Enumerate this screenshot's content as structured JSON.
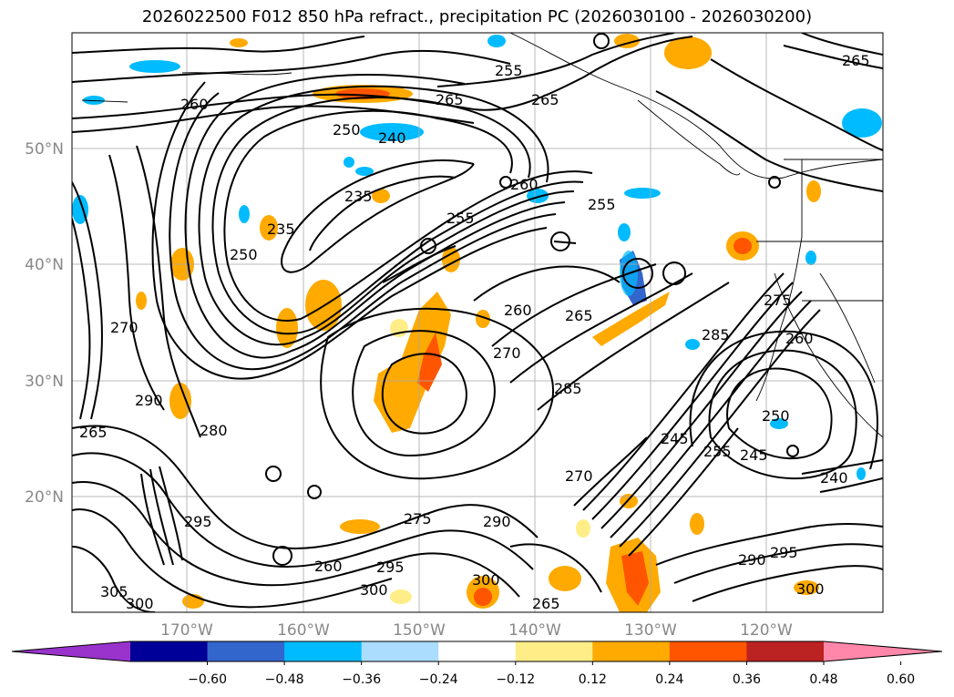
{
  "title": "2026022500 F012 850 hPa refract., precipitation PC (2026030100 - 2026030200)",
  "lat_labels": [
    "50°N",
    "40°N",
    "30°N",
    "20°N"
  ],
  "lon_labels": [
    "170°W",
    "160°W",
    "150°W",
    "140°W",
    "130°W",
    "120°W"
  ],
  "colorbar": {
    "colors": [
      "#9933cc",
      "#000099",
      "#3366cc",
      "#00bbff",
      "#aaddff",
      "#ffffff",
      "#ffee88",
      "#ffaa00",
      "#ff5500",
      "#bb2222",
      "#ff88aa"
    ],
    "tick_labels": [
      "−0.60",
      "−0.48",
      "−0.36",
      "−0.24",
      "−0.12",
      "0.12",
      "0.24",
      "0.36",
      "0.48",
      "0.60"
    ]
  },
  "contour_labels": [
    "255",
    "260",
    "265",
    "250",
    "240",
    "235",
    "235",
    "255",
    "260",
    "255",
    "250",
    "265",
    "270",
    "260",
    "270",
    "265",
    "285",
    "280",
    "275",
    "285",
    "260",
    "290",
    "245",
    "250",
    "245",
    "255",
    "240",
    "265",
    "270",
    "295",
    "275",
    "260",
    "290",
    "295",
    "300",
    "305",
    "300",
    "265",
    "300",
    "290",
    "265",
    "295",
    "300"
  ]
}
